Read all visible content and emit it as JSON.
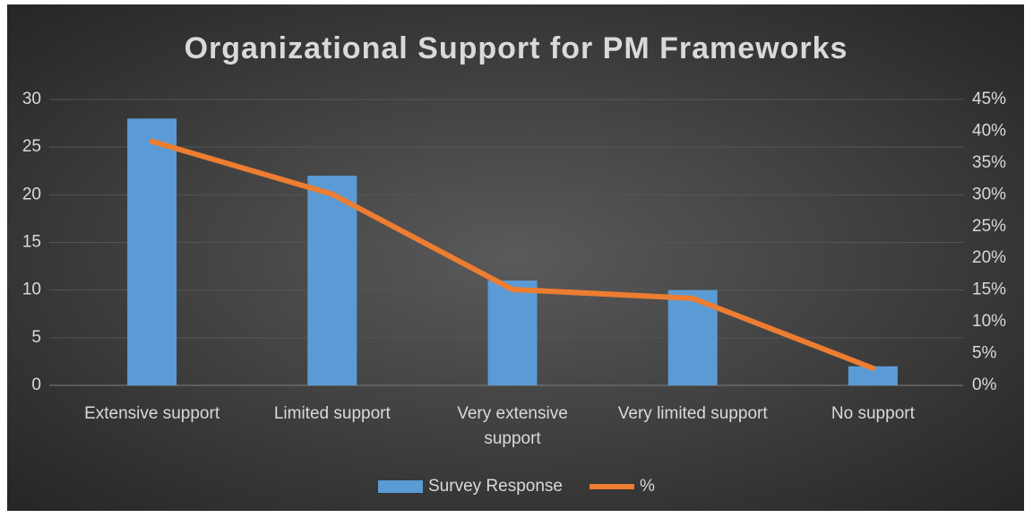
{
  "chart_data": {
    "type": "bar",
    "title": "Organizational Support for PM Frameworks",
    "categories": [
      "Extensive support",
      "Limited support",
      "Very extensive support",
      "Very limited support",
      "No support"
    ],
    "series": [
      {
        "name": "Survey Response",
        "color": "#5b9bd5",
        "values": [
          28,
          22,
          11,
          10,
          2
        ]
      },
      {
        "name": "%",
        "type": "line",
        "axis": "y2",
        "color": "#ed7d31",
        "values": [
          38.4,
          30.1,
          15.1,
          13.7,
          2.7
        ]
      }
    ],
    "ylim": [
      0,
      30
    ],
    "yticks": [
      0,
      5,
      10,
      15,
      20,
      25,
      30
    ],
    "y2lim": [
      0,
      45
    ],
    "y2ticks": [
      {
        "value": 0,
        "label": "0%"
      },
      {
        "value": 5,
        "label": "5%"
      },
      {
        "value": 10,
        "label": "10%"
      },
      {
        "value": 15,
        "label": "15%"
      },
      {
        "value": 20,
        "label": "20%"
      },
      {
        "value": 25,
        "label": "25%"
      },
      {
        "value": 30,
        "label": "30%"
      },
      {
        "value": 35,
        "label": "35%"
      },
      {
        "value": 40,
        "label": "40%"
      },
      {
        "value": 45,
        "label": "45%"
      }
    ],
    "grid": true,
    "legend": "bottom"
  }
}
